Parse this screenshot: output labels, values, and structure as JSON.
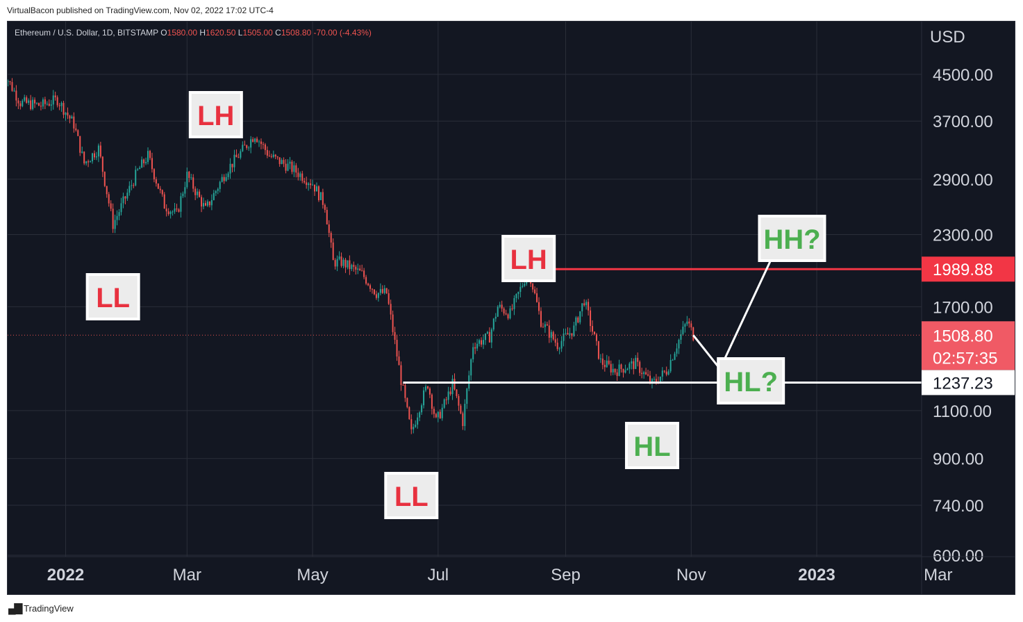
{
  "header": {
    "published": "VirtualBacon published on TradingView.com, Nov 02, 2022 17:02 UTC-4"
  },
  "footer": {
    "logo_icon": "tradingview-logo-icon",
    "brand": "TradingView"
  },
  "colors": {
    "background": "#131722",
    "grid": "#2a2e39",
    "up": "#26a69a",
    "down": "#ef5350",
    "resistance_line": "#f23645",
    "support_line": "#ffffff",
    "label_red": "#e8313f",
    "label_green": "#4caf50",
    "axis_text": "#d1d4dc"
  },
  "chart_data": {
    "type": "candlestick",
    "symbol_line": {
      "symbol": "Ethereum / U.S. Dollar, 1D, BITSTAMP",
      "o_label": "O",
      "o_value": "1580.00",
      "h_label": "H",
      "h_value": "1620.50",
      "l_label": "L",
      "l_value": "1505.00",
      "c_label": "C",
      "c_value": "1508.80",
      "change": "-70.00 (-4.43%)"
    },
    "currency": "USD",
    "y_scale": "log",
    "y_ticks": [
      "4500.00",
      "3700.00",
      "2900.00",
      "2300.00",
      "1700.00",
      "1100.00",
      "900.00",
      "740.00",
      "600.00"
    ],
    "x_ticks": [
      "2022",
      "Mar",
      "May",
      "Jul",
      "Sep",
      "Nov",
      "2023",
      "Mar"
    ],
    "grid": true,
    "last_price": {
      "value": "1508.80",
      "countdown": "02:57:35"
    },
    "levels": [
      {
        "value": 1989.88,
        "label": "1989.88",
        "color": "red",
        "from_date": "2022-08-14"
      },
      {
        "value": 1237.23,
        "label": "1237.23",
        "color": "white",
        "from_date": "2022-06-14"
      }
    ],
    "annotations": [
      {
        "text": "LH",
        "color": "red",
        "date": "2022-03-15"
      },
      {
        "text": "LL",
        "color": "red",
        "date": "2022-01-24"
      },
      {
        "text": "LH",
        "color": "red",
        "date": "2022-08-14"
      },
      {
        "text": "LL",
        "color": "red",
        "date": "2022-06-18"
      },
      {
        "text": "HL",
        "color": "green",
        "date": "2022-10-13"
      },
      {
        "text": "HL?",
        "color": "green",
        "date": "2022-11-30"
      },
      {
        "text": "HH?",
        "color": "green",
        "date": "2022-12-20"
      }
    ],
    "projection": [
      {
        "date": "2022-11-02",
        "price": 1508.8
      },
      {
        "date": "2022-11-15",
        "price": 1310
      },
      {
        "date": "2022-12-15",
        "price": 2280
      }
    ],
    "price_path": [
      {
        "date": "2021-12-01",
        "price": 4600
      },
      {
        "date": "2021-12-10",
        "price": 4000
      },
      {
        "date": "2021-12-20",
        "price": 3950
      },
      {
        "date": "2021-12-28",
        "price": 4050
      },
      {
        "date": "2022-01-05",
        "price": 3650
      },
      {
        "date": "2022-01-10",
        "price": 3100
      },
      {
        "date": "2022-01-17",
        "price": 3300
      },
      {
        "date": "2022-01-24",
        "price": 2400
      },
      {
        "date": "2022-02-05",
        "price": 3000
      },
      {
        "date": "2022-02-10",
        "price": 3200
      },
      {
        "date": "2022-02-18",
        "price": 2600
      },
      {
        "date": "2022-02-24",
        "price": 2500
      },
      {
        "date": "2022-03-01",
        "price": 2950
      },
      {
        "date": "2022-03-10",
        "price": 2550
      },
      {
        "date": "2022-03-20",
        "price": 3000
      },
      {
        "date": "2022-04-03",
        "price": 3500
      },
      {
        "date": "2022-04-10",
        "price": 3200
      },
      {
        "date": "2022-04-20",
        "price": 3050
      },
      {
        "date": "2022-05-01",
        "price": 2850
      },
      {
        "date": "2022-05-07",
        "price": 2600
      },
      {
        "date": "2022-05-11",
        "price": 2050
      },
      {
        "date": "2022-05-15",
        "price": 2050
      },
      {
        "date": "2022-05-25",
        "price": 1950
      },
      {
        "date": "2022-06-01",
        "price": 1800
      },
      {
        "date": "2022-06-06",
        "price": 1800
      },
      {
        "date": "2022-06-13",
        "price": 1250
      },
      {
        "date": "2022-06-18",
        "price": 1000
      },
      {
        "date": "2022-06-22",
        "price": 1120
      },
      {
        "date": "2022-06-26",
        "price": 1230
      },
      {
        "date": "2022-06-30",
        "price": 1050
      },
      {
        "date": "2022-07-05",
        "price": 1150
      },
      {
        "date": "2022-07-08",
        "price": 1230
      },
      {
        "date": "2022-07-13",
        "price": 1050
      },
      {
        "date": "2022-07-18",
        "price": 1450
      },
      {
        "date": "2022-07-26",
        "price": 1500
      },
      {
        "date": "2022-07-30",
        "price": 1700
      },
      {
        "date": "2022-08-05",
        "price": 1650
      },
      {
        "date": "2022-08-14",
        "price": 1990
      },
      {
        "date": "2022-08-20",
        "price": 1600
      },
      {
        "date": "2022-08-28",
        "price": 1450
      },
      {
        "date": "2022-09-05",
        "price": 1550
      },
      {
        "date": "2022-09-10",
        "price": 1750
      },
      {
        "date": "2022-09-18",
        "price": 1350
      },
      {
        "date": "2022-09-25",
        "price": 1300
      },
      {
        "date": "2022-10-05",
        "price": 1340
      },
      {
        "date": "2022-10-13",
        "price": 1230
      },
      {
        "date": "2022-10-20",
        "price": 1300
      },
      {
        "date": "2022-10-25",
        "price": 1450
      },
      {
        "date": "2022-10-30",
        "price": 1600
      },
      {
        "date": "2022-11-02",
        "price": 1508.8
      }
    ]
  }
}
